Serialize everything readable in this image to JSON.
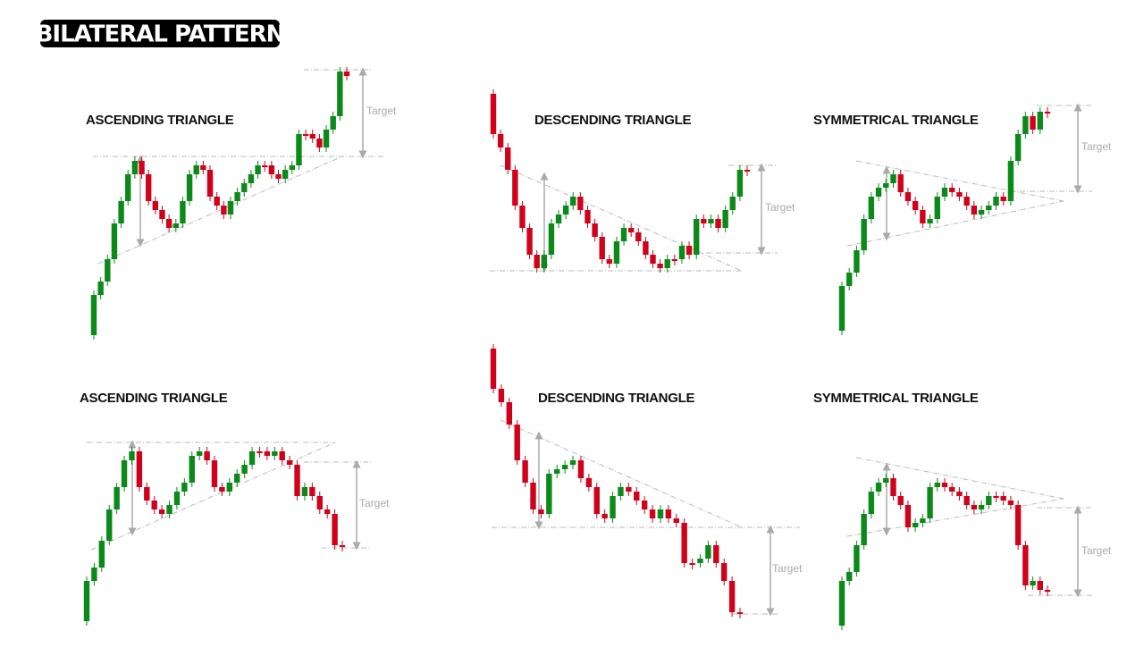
{
  "title": "BILATERAL PATTERN",
  "panels": [
    {
      "label": "ASCENDING TRIANGLE",
      "target": "Target"
    },
    {
      "label": "DESCENDING TRIANGLE",
      "target": "Target"
    },
    {
      "label": "SYMMETRICAL TRIANGLE",
      "target": "Target"
    },
    {
      "label": "ASCENDING TRIANGLE",
      "target": "Target"
    },
    {
      "label": "DESCENDING TRIANGLE",
      "target": "Target"
    },
    {
      "label": "SYMMETRICAL TRIANGLE",
      "target": "Target"
    }
  ]
}
